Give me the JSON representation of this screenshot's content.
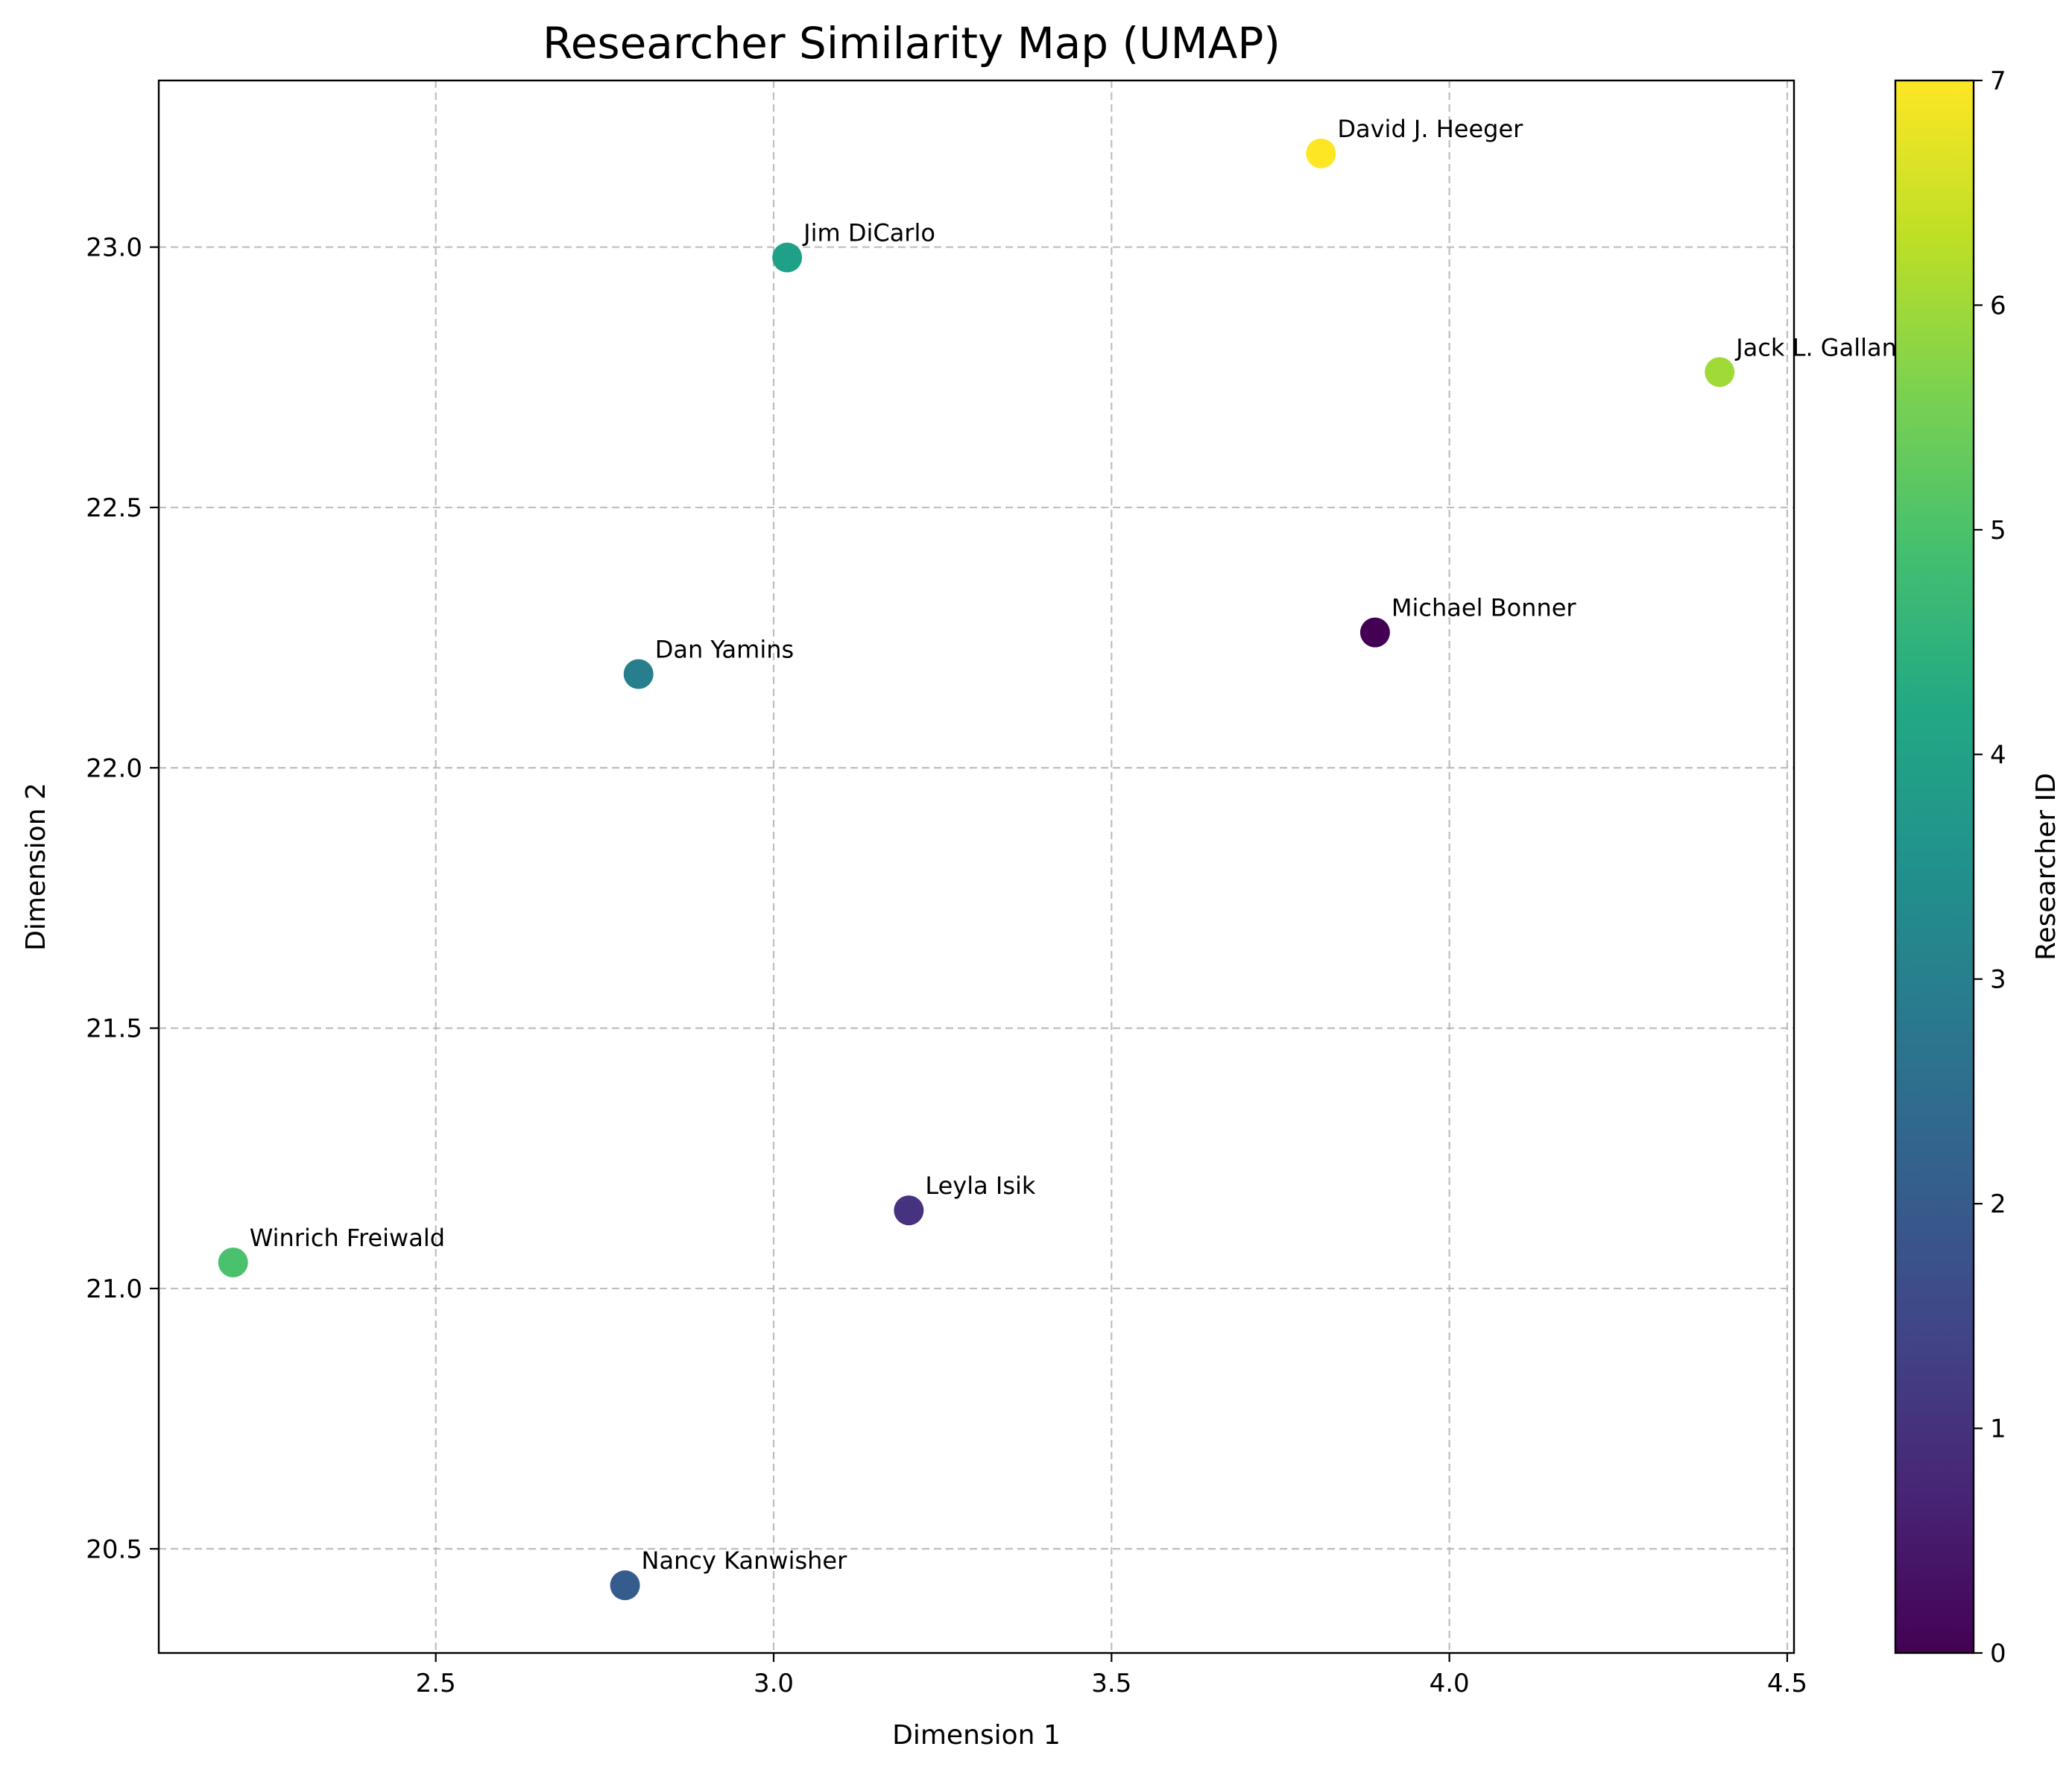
{
  "chart_data": {
    "type": "scatter",
    "title": "Researcher Similarity Map (UMAP)",
    "xlabel": "Dimension 1",
    "ylabel": "Dimension 2",
    "xlim": [
      2.09,
      4.51
    ],
    "ylim": [
      20.3,
      23.32
    ],
    "xticks": [
      "2.5",
      "3.0",
      "3.5",
      "4.0",
      "4.5"
    ],
    "yticks": [
      "20.5",
      "21.0",
      "21.5",
      "22.0",
      "22.5",
      "23.0"
    ],
    "grid": true,
    "colorbar": {
      "label": "Researcher ID",
      "range": [
        0,
        7
      ],
      "ticks": [
        "0",
        "1",
        "2",
        "3",
        "4",
        "5",
        "6",
        "7"
      ],
      "colormap": "viridis"
    },
    "points": [
      {
        "name": "Michael Bonner",
        "x": 3.89,
        "y": 22.26,
        "id": 0,
        "color": "#440154"
      },
      {
        "name": "Leyla Isik",
        "x": 3.2,
        "y": 21.15,
        "id": 1,
        "color": "#46327e"
      },
      {
        "name": "Nancy Kanwisher",
        "x": 2.78,
        "y": 20.43,
        "id": 2,
        "color": "#365c8d"
      },
      {
        "name": "Dan Yamins",
        "x": 2.8,
        "y": 22.18,
        "id": 3,
        "color": "#277f8e"
      },
      {
        "name": "Jim DiCarlo",
        "x": 3.02,
        "y": 22.98,
        "id": 4,
        "color": "#1fa187"
      },
      {
        "name": "Winrich Freiwald",
        "x": 2.2,
        "y": 21.05,
        "id": 5,
        "color": "#4ac16d"
      },
      {
        "name": "Jack L. Gallant",
        "x": 4.4,
        "y": 22.76,
        "id": 6,
        "color": "#a0da39"
      },
      {
        "name": "David J. Heeger",
        "x": 3.81,
        "y": 23.18,
        "id": 7,
        "color": "#fde725"
      }
    ]
  }
}
